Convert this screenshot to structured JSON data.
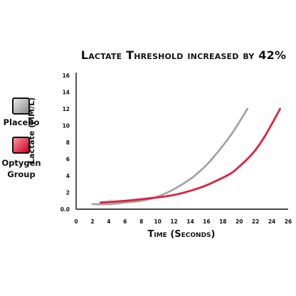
{
  "chart_data": {
    "type": "line",
    "title": "Lactate Threshold increased by 42%",
    "xlabel": "Time (Seconds)",
    "ylabel": "Lactate (MM/L)",
    "xlim": [
      0,
      26
    ],
    "ylim": [
      0,
      16
    ],
    "xticks": [
      "0",
      "2",
      "4",
      "6",
      "8",
      "10",
      "12",
      "14",
      "16",
      "18",
      "20",
      "22",
      "24",
      "26"
    ],
    "yticks": [
      "0.0",
      "2",
      "4",
      "6",
      "8",
      "10",
      "12",
      "14",
      "16"
    ],
    "grid": false,
    "legend": "left",
    "series": [
      {
        "name": "Placebo",
        "color": "#a3a3a3",
        "x": [
          2,
          4,
          6,
          8,
          10,
          12,
          14,
          15,
          16,
          17,
          18,
          19,
          20,
          21
        ],
        "y": [
          0.6,
          0.6,
          0.8,
          1.0,
          1.5,
          2.4,
          3.6,
          4.4,
          5.3,
          6.4,
          7.6,
          8.9,
          10.4,
          12.0
        ]
      },
      {
        "name": "Optygen Group",
        "color": "#e0203c",
        "x": [
          3,
          6,
          9,
          12,
          15,
          17,
          19,
          20,
          21,
          22,
          23,
          24,
          25
        ],
        "y": [
          0.8,
          1.0,
          1.3,
          1.7,
          2.5,
          3.3,
          4.3,
          5.1,
          6.0,
          7.1,
          8.5,
          10.2,
          12.0
        ]
      }
    ]
  },
  "legend": {
    "items": [
      {
        "label": "Placebo",
        "swatch": "gray-gradient"
      },
      {
        "label": "Optygen\nGroup",
        "swatch": "red-gradient"
      }
    ]
  }
}
